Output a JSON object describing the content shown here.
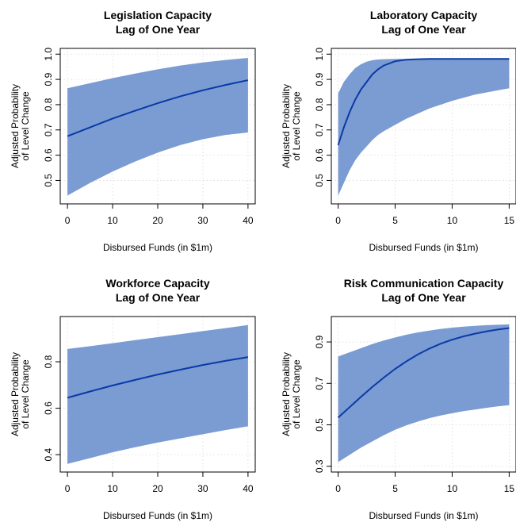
{
  "chart_data": [
    {
      "type": "area",
      "title": "Legislation Capacity",
      "subtitle": "Lag of One Year",
      "xlabel": "Disbursed Funds (in $1m)",
      "ylabel": [
        "Adjusted Probability",
        "of Level Change"
      ],
      "xlim": [
        0,
        40
      ],
      "ylim": [
        0.43,
        1.0
      ],
      "xticks": [
        0,
        10,
        20,
        30,
        40
      ],
      "yticks": [
        0.5,
        0.6,
        0.7,
        0.8,
        0.9,
        1.0
      ],
      "ytick_labels": [
        "0.5",
        "0.6",
        "0.7",
        "0.8",
        "0.9",
        "1.0"
      ],
      "grid": true,
      "x": [
        0,
        5,
        10,
        15,
        20,
        25,
        30,
        35,
        40
      ],
      "series": [
        {
          "values": [
            0.675,
            0.71,
            0.745,
            0.776,
            0.806,
            0.833,
            0.857,
            0.878,
            0.897
          ]
        }
      ],
      "band_lower": [
        0.44,
        0.49,
        0.535,
        0.575,
        0.61,
        0.64,
        0.663,
        0.68,
        0.69
      ],
      "band_upper": [
        0.865,
        0.885,
        0.905,
        0.923,
        0.94,
        0.955,
        0.967,
        0.977,
        0.985
      ],
      "line_color": "#0a3aa6",
      "band_color": "#7b9bd3"
    },
    {
      "type": "area",
      "title": "Laboratory Capacity",
      "subtitle": "Lag of One Year",
      "xlabel": "Disbursed Funds (in $1m)",
      "ylabel": [
        "Adjusted Probability",
        "of Level Change"
      ],
      "xlim": [
        0,
        15
      ],
      "ylim": [
        0.43,
        1.0
      ],
      "xticks": [
        0,
        5,
        10,
        15
      ],
      "xtick_labels": [
        "0",
        "5",
        "10",
        "15"
      ],
      "yticks": [
        0.5,
        0.6,
        0.7,
        0.8,
        0.9,
        1.0
      ],
      "ytick_labels": [
        "0.5",
        "0.6",
        "0.7",
        "0.8",
        "0.9",
        "1.0"
      ],
      "grid": true,
      "x": [
        0,
        0.5,
        1,
        1.5,
        2,
        2.5,
        3,
        3.5,
        4,
        5,
        6,
        7,
        8,
        10,
        12,
        15
      ],
      "series": [
        {
          "values": [
            0.64,
            0.71,
            0.77,
            0.82,
            0.86,
            0.89,
            0.92,
            0.94,
            0.955,
            0.972,
            0.978,
            0.98,
            0.981,
            0.981,
            0.981,
            0.981
          ]
        }
      ],
      "band_lower": [
        0.44,
        0.49,
        0.54,
        0.58,
        0.61,
        0.635,
        0.66,
        0.68,
        0.695,
        0.72,
        0.745,
        0.765,
        0.785,
        0.815,
        0.84,
        0.865
      ],
      "band_upper": [
        0.845,
        0.89,
        0.92,
        0.945,
        0.96,
        0.97,
        0.976,
        0.979,
        0.98,
        0.981,
        0.981,
        0.981,
        0.981,
        0.981,
        0.981,
        0.981
      ],
      "line_color": "#0a3aa6",
      "band_color": "#7b9bd3"
    },
    {
      "type": "area",
      "title": "Workforce Capacity",
      "subtitle": "Lag of One Year",
      "xlabel": "Disbursed Funds (in $1m)",
      "ylabel": [
        "Adjusted Probability",
        "of Level Change"
      ],
      "xlim": [
        0,
        40
      ],
      "ylim": [
        0.35,
        0.97
      ],
      "xticks": [
        0,
        10,
        20,
        30,
        40
      ],
      "yticks": [
        0.4,
        0.6,
        0.8
      ],
      "ytick_labels": [
        "0.4",
        "0.6",
        "0.8"
      ],
      "grid": true,
      "x": [
        0,
        5,
        10,
        15,
        20,
        25,
        30,
        35,
        40
      ],
      "series": [
        {
          "values": [
            0.645,
            0.672,
            0.698,
            0.722,
            0.745,
            0.766,
            0.786,
            0.804,
            0.82
          ]
        }
      ],
      "band_lower": [
        0.36,
        0.385,
        0.41,
        0.432,
        0.452,
        0.47,
        0.488,
        0.506,
        0.522
      ],
      "band_upper": [
        0.855,
        0.867,
        0.88,
        0.893,
        0.906,
        0.919,
        0.932,
        0.945,
        0.958
      ],
      "line_color": "#0a3aa6",
      "band_color": "#7b9bd3"
    },
    {
      "type": "area",
      "title": "Risk Communication Capacity",
      "subtitle": "Lag of One Year",
      "xlabel": "Disbursed Funds (in $1m)",
      "ylabel": [
        "Adjusted Probability",
        "of Level Change"
      ],
      "xlim": [
        0,
        15
      ],
      "ylim": [
        0.3,
        0.995
      ],
      "xticks": [
        0,
        5,
        10,
        15
      ],
      "xtick_labels": [
        "0",
        "5",
        "10",
        "15"
      ],
      "yticks": [
        0.3,
        0.5,
        0.7,
        0.9
      ],
      "ytick_labels": [
        "0.3",
        "0.5",
        "0.7",
        "0.9"
      ],
      "grid": true,
      "x": [
        0,
        1,
        2,
        3,
        4,
        5,
        6,
        7,
        8,
        9,
        10,
        11,
        12,
        13,
        14,
        15
      ],
      "series": [
        {
          "values": [
            0.535,
            0.585,
            0.635,
            0.683,
            0.728,
            0.77,
            0.807,
            0.84,
            0.868,
            0.892,
            0.911,
            0.927,
            0.94,
            0.951,
            0.96,
            0.967
          ]
        }
      ],
      "band_lower": [
        0.32,
        0.355,
        0.39,
        0.42,
        0.45,
        0.476,
        0.498,
        0.516,
        0.532,
        0.545,
        0.556,
        0.566,
        0.574,
        0.582,
        0.589,
        0.595
      ],
      "band_upper": [
        0.83,
        0.85,
        0.87,
        0.89,
        0.907,
        0.922,
        0.935,
        0.946,
        0.955,
        0.963,
        0.969,
        0.974,
        0.978,
        0.981,
        0.983,
        0.985
      ],
      "line_color": "#0a3aa6",
      "band_color": "#7b9bd3"
    }
  ]
}
